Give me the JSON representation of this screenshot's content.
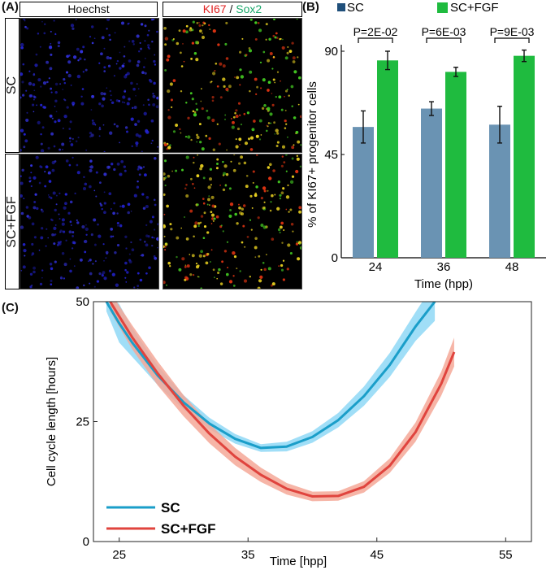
{
  "panel_a": {
    "label": "(A)",
    "headers": {
      "hoechst": "Hoechst",
      "ki67": "KI67",
      "slash": " / ",
      "sox2": "Sox2"
    },
    "rows": [
      "SC",
      "SC+FGF"
    ],
    "colors": {
      "ki67": "#e02020",
      "sox2": "#1aa86b",
      "hoechst_dots": "#2222cc",
      "merge_yellow": "#e8d020",
      "merge_green": "#44cc22",
      "merge_red": "#dd3311"
    }
  },
  "panel_b": {
    "label": "(B)"
  },
  "panel_c": {
    "label": "(C)"
  },
  "chart_data": [
    {
      "type": "bar",
      "title": "",
      "xlabel": "Time (hpp)",
      "ylabel": "% of KI67+ progenitor cells",
      "categories": [
        "24",
        "36",
        "48"
      ],
      "ylim": [
        0,
        90
      ],
      "yticks": [
        "0",
        "45",
        "90"
      ],
      "series": [
        {
          "name": "SC",
          "color": "#6a93b3",
          "values": [
            57,
            65,
            58
          ],
          "errors": [
            7,
            3,
            8
          ]
        },
        {
          "name": "SC+FGF",
          "color": "#1fbb3f",
          "values": [
            86,
            81,
            88
          ],
          "errors": [
            4,
            2,
            2.5
          ]
        }
      ],
      "legend_swatch_colors": {
        "SC": "#1f4f7a",
        "SC+FGF": "#1fbb3f"
      },
      "annotations": [
        "P=2E-02",
        "P=6E-03",
        "P=9E-03"
      ],
      "legend_position": "top"
    },
    {
      "type": "line",
      "title": "",
      "xlabel": "Time [hpp]",
      "ylabel": "Cell cycle length  [hours]",
      "xlim": [
        23,
        57
      ],
      "ylim": [
        0,
        50
      ],
      "xticks": [
        "25",
        "35",
        "45",
        "55"
      ],
      "yticks": [
        "0",
        "25",
        "50"
      ],
      "legend_position": "bottom-left",
      "series": [
        {
          "name": "SC",
          "color": "#1a9ec9",
          "band_color": "#8fd8f6",
          "x": [
            24,
            25,
            26,
            28,
            30,
            32,
            34,
            36,
            38,
            40,
            42,
            44,
            46,
            48,
            49.5
          ],
          "y": [
            50,
            45.5,
            41.5,
            34.6,
            29.0,
            24.6,
            21.4,
            19.5,
            19.8,
            21.8,
            25.3,
            30.3,
            36.8,
            44.8,
            50
          ],
          "band": [
            2,
            4,
            3,
            2,
            1.5,
            1.2,
            1,
            0.8,
            1,
            1.2,
            1.5,
            2,
            2.5,
            3,
            4
          ]
        },
        {
          "name": "SC+FGF",
          "color": "#e0443e",
          "band_color": "#f4a898",
          "x": [
            24.3,
            26,
            28,
            30,
            32,
            34,
            36,
            38,
            40,
            42,
            44,
            46,
            48,
            50,
            51
          ],
          "y": [
            50,
            42.6,
            35.0,
            28.3,
            22.5,
            17.7,
            13.9,
            11.0,
            9.4,
            9.5,
            11.4,
            15.8,
            22.8,
            32.9,
            39.5
          ],
          "band": [
            2,
            2.5,
            2.5,
            2.2,
            2,
            1.8,
            1.5,
            1.2,
            1,
            1,
            1.2,
            1.5,
            2,
            2.5,
            3
          ]
        }
      ]
    }
  ]
}
